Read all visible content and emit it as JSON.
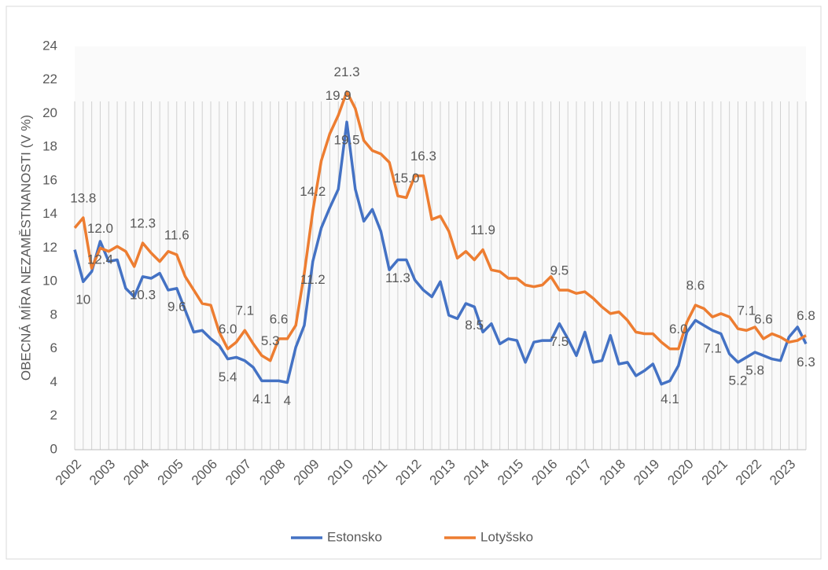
{
  "chart_data": {
    "type": "line",
    "y_label": "OBECNÁ MÍRA NEZAMĚSTNANOSTI (V %)",
    "categories": [
      "2002",
      null,
      null,
      null,
      "2003",
      null,
      null,
      null,
      "2004",
      null,
      null,
      null,
      "2005",
      null,
      null,
      null,
      "2006",
      null,
      null,
      null,
      "2007",
      null,
      null,
      null,
      "2008",
      null,
      null,
      null,
      "2009",
      null,
      null,
      null,
      "2010",
      null,
      null,
      null,
      "2011",
      null,
      null,
      null,
      "2012",
      null,
      null,
      null,
      "2013",
      null,
      null,
      null,
      "2014",
      null,
      null,
      null,
      "2015",
      null,
      null,
      null,
      "2016",
      null,
      null,
      null,
      "2017",
      null,
      null,
      null,
      "2018",
      null,
      null,
      null,
      "2019",
      null,
      null,
      null,
      "2020",
      null,
      null,
      null,
      "2021",
      null,
      null,
      null,
      "2022",
      null,
      null,
      null,
      "2023",
      null,
      null
    ],
    "series": [
      {
        "name": "Estonsko",
        "color": "#4472c4",
        "values": [
          11.9,
          10.0,
          10.6,
          12.4,
          11.2,
          11.3,
          9.6,
          9.1,
          10.3,
          10.2,
          10.5,
          9.5,
          9.6,
          8.3,
          7.0,
          7.1,
          6.6,
          6.2,
          5.4,
          5.5,
          5.3,
          4.9,
          4.1,
          4.1,
          4.1,
          4.0,
          6.1,
          7.4,
          11.2,
          13.2,
          14.4,
          15.5,
          19.5,
          15.5,
          13.6,
          14.3,
          13.0,
          10.7,
          11.3,
          11.3,
          10.1,
          9.5,
          9.1,
          10.0,
          8.0,
          7.8,
          8.7,
          8.5,
          7.0,
          7.5,
          6.3,
          6.6,
          6.5,
          5.2,
          6.4,
          6.5,
          6.5,
          7.5,
          6.6,
          5.6,
          7.0,
          5.2,
          5.3,
          6.8,
          5.1,
          5.2,
          4.4,
          4.7,
          5.1,
          3.9,
          4.1,
          5.0,
          7.0,
          7.7,
          7.4,
          7.1,
          6.9,
          5.7,
          5.2,
          5.5,
          5.8,
          5.6,
          5.4,
          5.3,
          6.7,
          7.3,
          6.3
        ],
        "value_labels": [
          null,
          "10",
          null,
          "12.4",
          null,
          null,
          null,
          null,
          "10.3",
          null,
          null,
          null,
          "9.6",
          null,
          null,
          null,
          null,
          null,
          "5.4",
          null,
          null,
          null,
          "4.1",
          null,
          null,
          "4",
          null,
          null,
          "11.2",
          null,
          null,
          null,
          "19.5",
          null,
          null,
          null,
          null,
          null,
          "11.3",
          null,
          null,
          null,
          null,
          null,
          null,
          null,
          null,
          "8.5",
          null,
          null,
          null,
          null,
          null,
          null,
          null,
          null,
          null,
          "7.5",
          null,
          null,
          null,
          null,
          null,
          null,
          null,
          null,
          null,
          null,
          null,
          null,
          "4.1",
          null,
          null,
          null,
          null,
          "7.1",
          null,
          null,
          "5.2",
          null,
          "5.8",
          null,
          null,
          null,
          null,
          null,
          "6.3"
        ]
      },
      {
        "name": "Lotyšsko",
        "color": "#ed7d31",
        "values": [
          13.2,
          13.8,
          10.8,
          12.0,
          11.8,
          12.1,
          11.8,
          10.9,
          12.3,
          11.7,
          11.2,
          11.8,
          11.6,
          10.3,
          9.5,
          8.7,
          8.6,
          7.0,
          6.0,
          6.4,
          7.1,
          6.3,
          5.6,
          5.3,
          6.6,
          6.6,
          7.4,
          10.5,
          14.2,
          17.2,
          18.8,
          19.9,
          21.3,
          20.3,
          18.4,
          17.8,
          17.6,
          17.1,
          15.1,
          15.0,
          16.3,
          16.3,
          13.7,
          13.9,
          13.0,
          11.4,
          11.8,
          11.3,
          11.9,
          10.7,
          10.6,
          10.2,
          10.2,
          9.8,
          9.7,
          9.8,
          10.3,
          9.5,
          9.5,
          9.3,
          9.4,
          9.0,
          8.5,
          8.1,
          8.2,
          7.7,
          7.0,
          6.9,
          6.9,
          6.4,
          6.0,
          6.0,
          7.6,
          8.6,
          8.4,
          7.9,
          8.1,
          7.9,
          7.2,
          7.1,
          7.3,
          6.6,
          6.9,
          6.7,
          6.4,
          6.5,
          6.8
        ],
        "value_labels": [
          null,
          "13.8",
          null,
          "12.0",
          null,
          null,
          null,
          null,
          "12.3",
          null,
          null,
          null,
          "11.6",
          null,
          null,
          null,
          null,
          null,
          "6.0",
          null,
          "7.1",
          null,
          null,
          "5.3",
          "6.6",
          null,
          null,
          null,
          "14.2",
          null,
          null,
          "19.9",
          "21.3",
          null,
          null,
          null,
          null,
          null,
          null,
          "15.0",
          null,
          "16.3",
          null,
          null,
          null,
          null,
          null,
          null,
          "11.9",
          null,
          null,
          null,
          null,
          null,
          null,
          null,
          null,
          "9.5",
          null,
          null,
          null,
          null,
          null,
          null,
          null,
          null,
          null,
          null,
          null,
          null,
          null,
          "6.0",
          null,
          "8.6",
          null,
          null,
          null,
          null,
          null,
          "7.1",
          null,
          "6.6",
          null,
          null,
          null,
          null,
          "6.8"
        ]
      }
    ],
    "ylim": [
      0,
      24
    ],
    "yticks": [
      0,
      2,
      4,
      6,
      8,
      10,
      12,
      14,
      16,
      18,
      20,
      22,
      24
    ],
    "legend": "bottom"
  }
}
